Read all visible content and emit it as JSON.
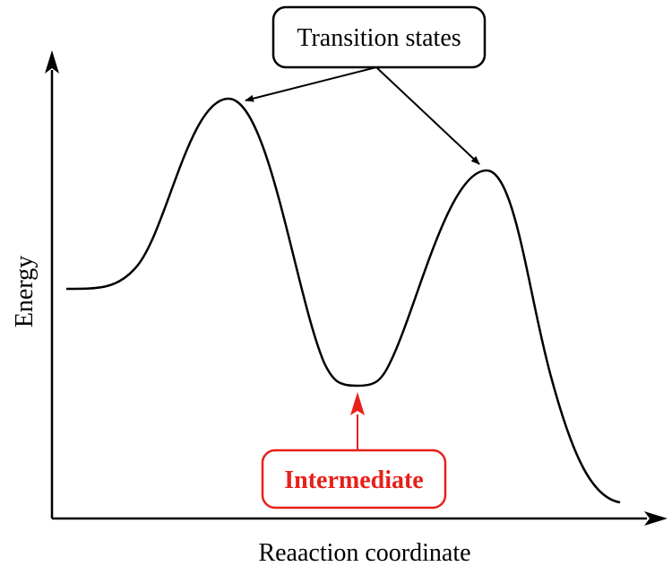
{
  "diagram": {
    "y_axis_label": "Energy",
    "x_axis_label": "Reaaction coordinate",
    "transition_states_label": "Transition states",
    "intermediate_label": "Intermediate",
    "colors": {
      "line": "#000000",
      "intermediate": "#e8201a",
      "background": "#ffffff"
    }
  }
}
